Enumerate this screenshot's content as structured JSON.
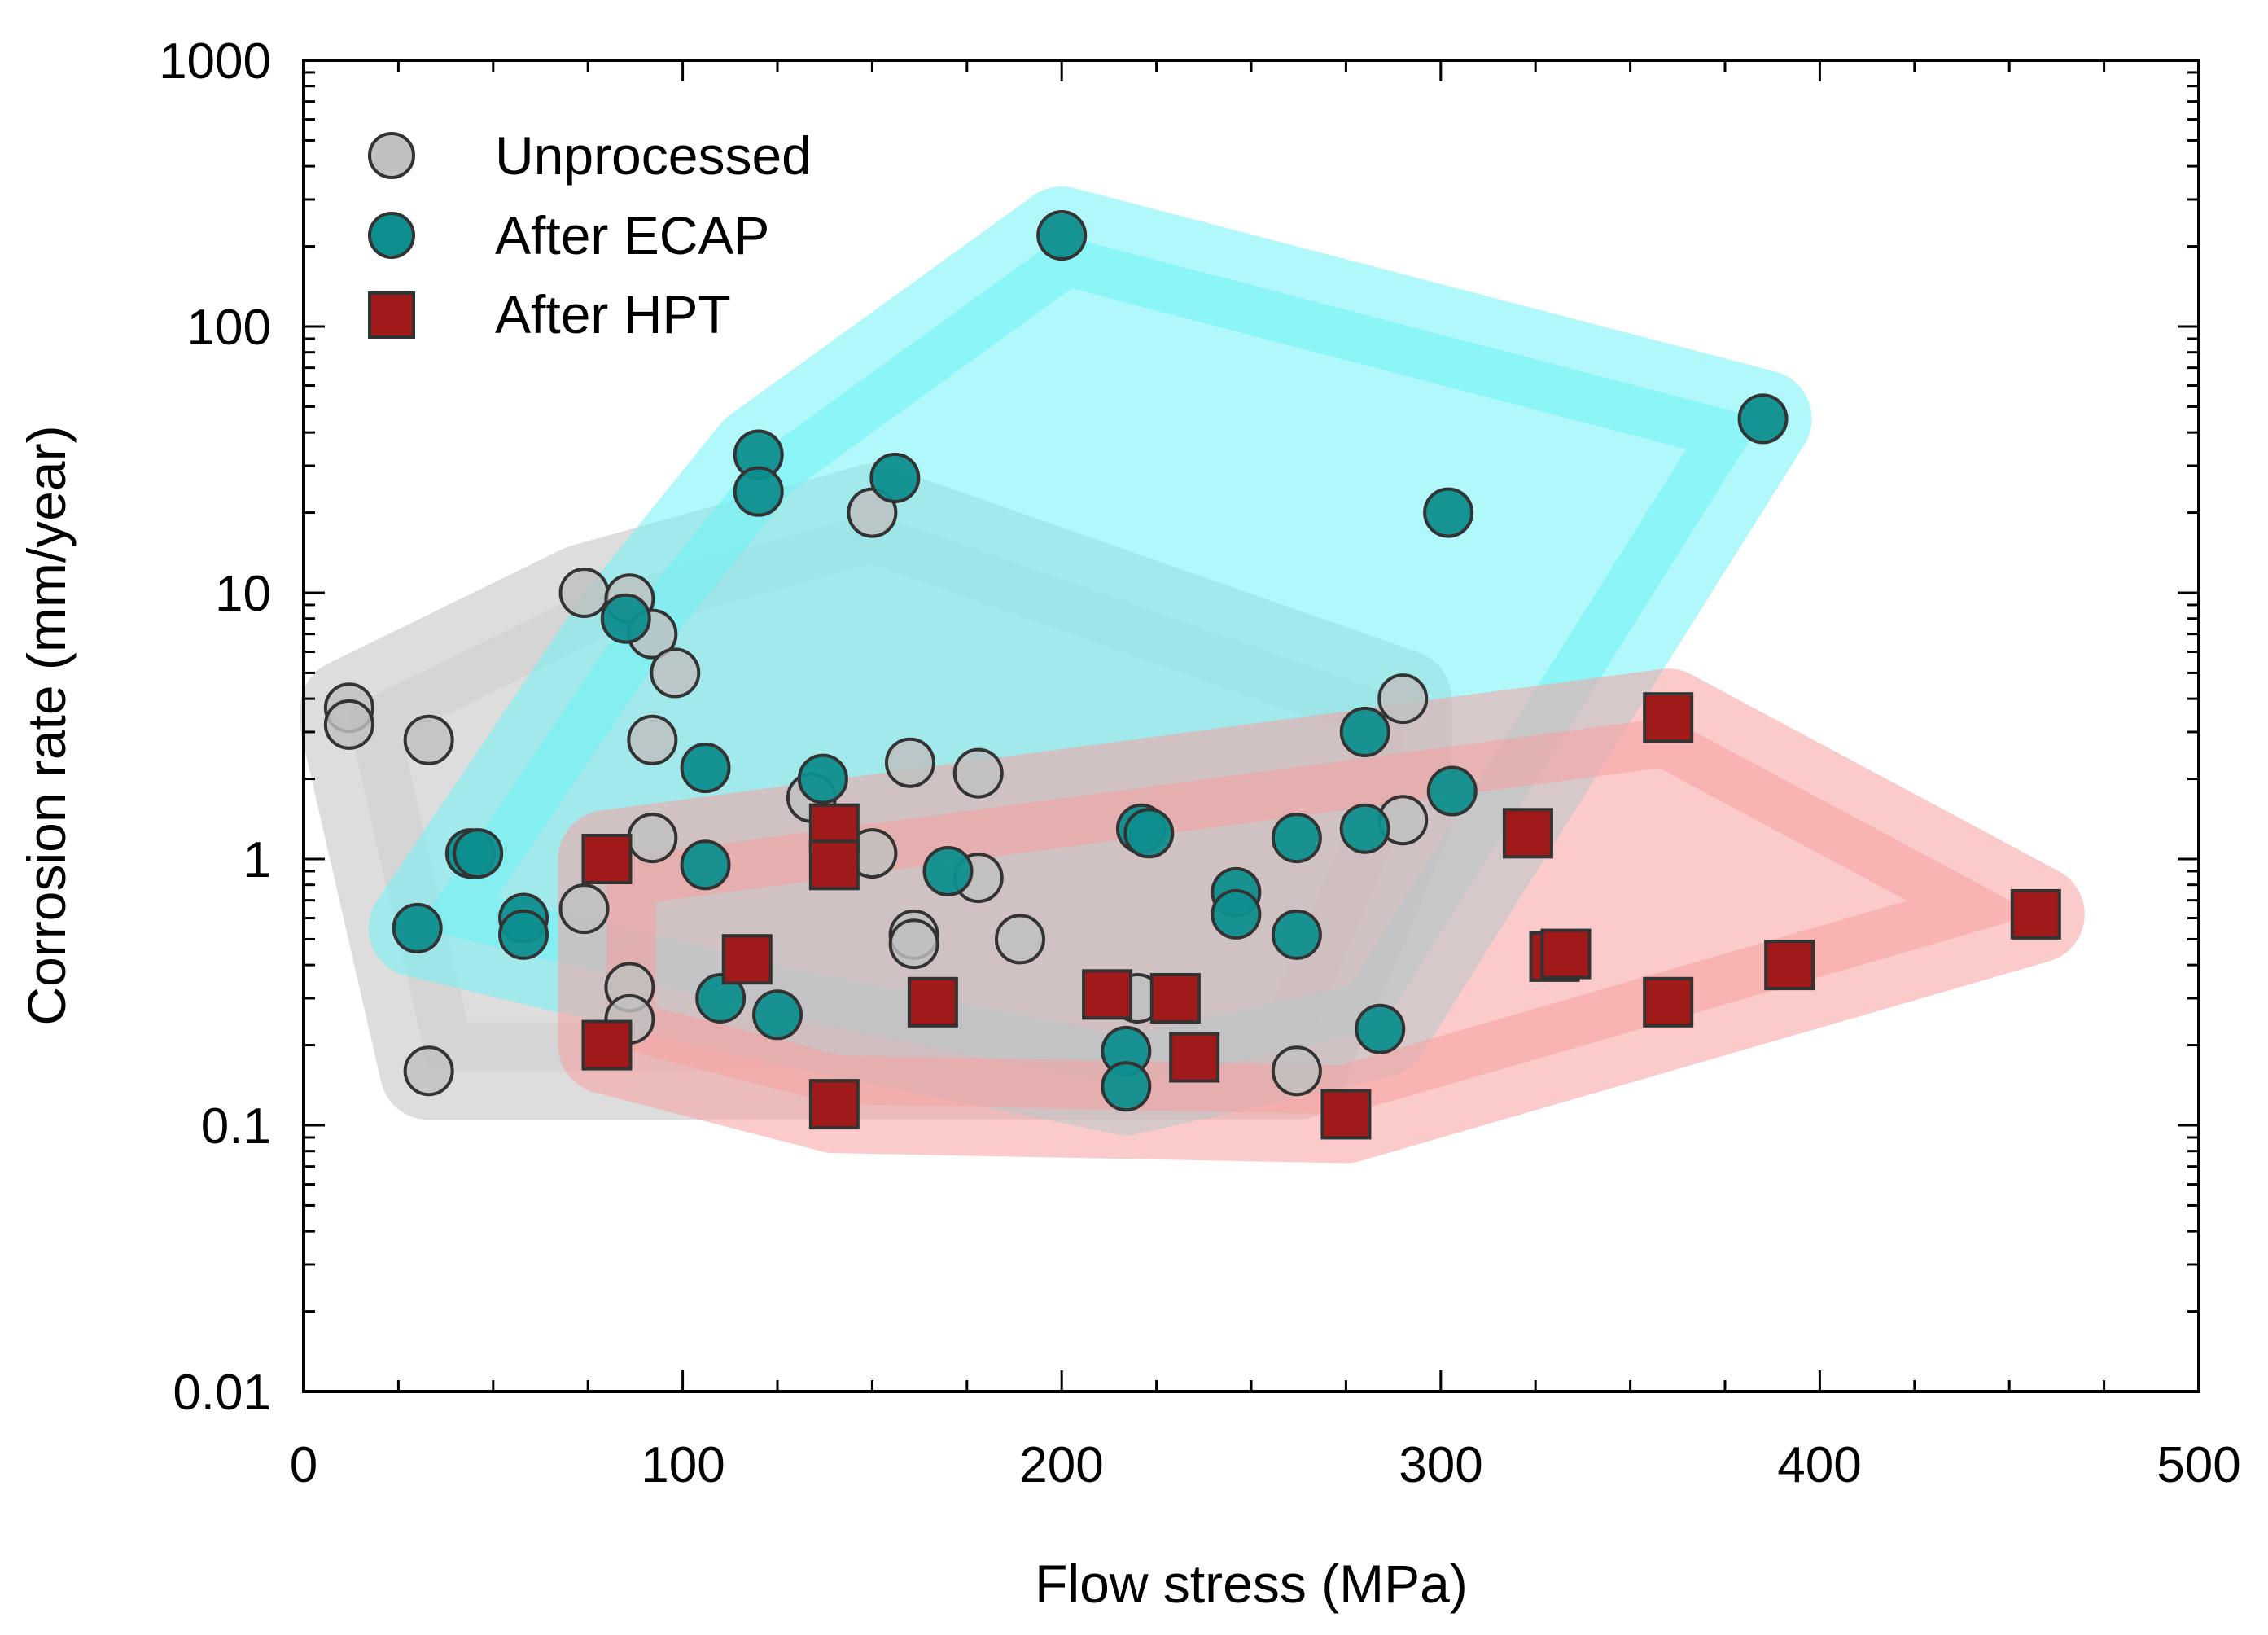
{
  "chart_data": {
    "type": "scatter",
    "title": "",
    "xlabel": "Flow stress (MPa)",
    "ylabel": "Corrosion rate (mm/year)",
    "xlim": [
      0,
      500
    ],
    "ylim": [
      0.01,
      1000
    ],
    "yscale": "log",
    "x_ticks": [
      "0",
      "100",
      "200",
      "300",
      "400",
      "500"
    ],
    "y_ticks": [
      "0.01",
      "0.1",
      "1",
      "10",
      "100",
      "1000"
    ],
    "legend_position": "top-left",
    "series": [
      {
        "name": "Unprocessed",
        "marker": "circle",
        "color": "#c0c0c0",
        "region_color": "#d2d2d2",
        "points": [
          [
            12,
            3.7
          ],
          [
            12,
            3.2
          ],
          [
            33,
            2.8
          ],
          [
            33,
            0.16
          ],
          [
            74,
            0.65
          ],
          [
            74,
            10
          ],
          [
            86,
            9.5
          ],
          [
            86,
            0.33
          ],
          [
            86,
            0.25
          ],
          [
            92,
            7
          ],
          [
            92,
            2.8
          ],
          [
            92,
            1.2
          ],
          [
            98,
            5
          ],
          [
            134,
            1.7
          ],
          [
            150,
            1.05
          ],
          [
            150,
            20
          ],
          [
            160,
            2.3
          ],
          [
            161,
            0.52
          ],
          [
            161,
            0.48
          ],
          [
            178,
            2.1
          ],
          [
            178,
            0.85
          ],
          [
            189,
            0.5
          ],
          [
            220,
            0.3
          ],
          [
            262,
            0.16
          ],
          [
            290,
            4
          ],
          [
            290,
            1.4
          ]
        ]
      },
      {
        "name": "After ECAP",
        "marker": "circle",
        "color": "#0e8e8e",
        "region_color": "#70f2f5",
        "points": [
          [
            30,
            0.55
          ],
          [
            44,
            1.05
          ],
          [
            46,
            1.05
          ],
          [
            58,
            0.6
          ],
          [
            58,
            0.52
          ],
          [
            85,
            8
          ],
          [
            106,
            0.95
          ],
          [
            106,
            2.2
          ],
          [
            110,
            0.3
          ],
          [
            120,
            33
          ],
          [
            120,
            24
          ],
          [
            125,
            0.26
          ],
          [
            137,
            2
          ],
          [
            156,
            27
          ],
          [
            170,
            0.9
          ],
          [
            200,
            220
          ],
          [
            217,
            0.19
          ],
          [
            217,
            0.14
          ],
          [
            221,
            1.3
          ],
          [
            223,
            1.25
          ],
          [
            246,
            0.75
          ],
          [
            246,
            0.62
          ],
          [
            262,
            1.2
          ],
          [
            262,
            0.52
          ],
          [
            280,
            3
          ],
          [
            280,
            1.3
          ],
          [
            284,
            0.23
          ],
          [
            302,
            20
          ],
          [
            303,
            1.8
          ],
          [
            385,
            45
          ]
        ]
      },
      {
        "name": "After HPT",
        "marker": "square",
        "color": "#a01a1a",
        "region_color": "#f8a0a0",
        "points": [
          [
            80,
            1.0
          ],
          [
            80,
            0.2
          ],
          [
            117,
            0.42
          ],
          [
            140,
            1.3
          ],
          [
            140,
            0.95
          ],
          [
            140,
            0.12
          ],
          [
            166,
            0.29
          ],
          [
            212,
            0.31
          ],
          [
            230,
            0.3
          ],
          [
            235,
            0.18
          ],
          [
            275,
            0.11
          ],
          [
            323,
            1.25
          ],
          [
            330,
            0.43
          ],
          [
            333,
            0.44
          ],
          [
            360,
            3.4
          ],
          [
            360,
            0.29
          ],
          [
            392,
            0.4
          ],
          [
            457,
            0.62
          ]
        ]
      }
    ]
  }
}
